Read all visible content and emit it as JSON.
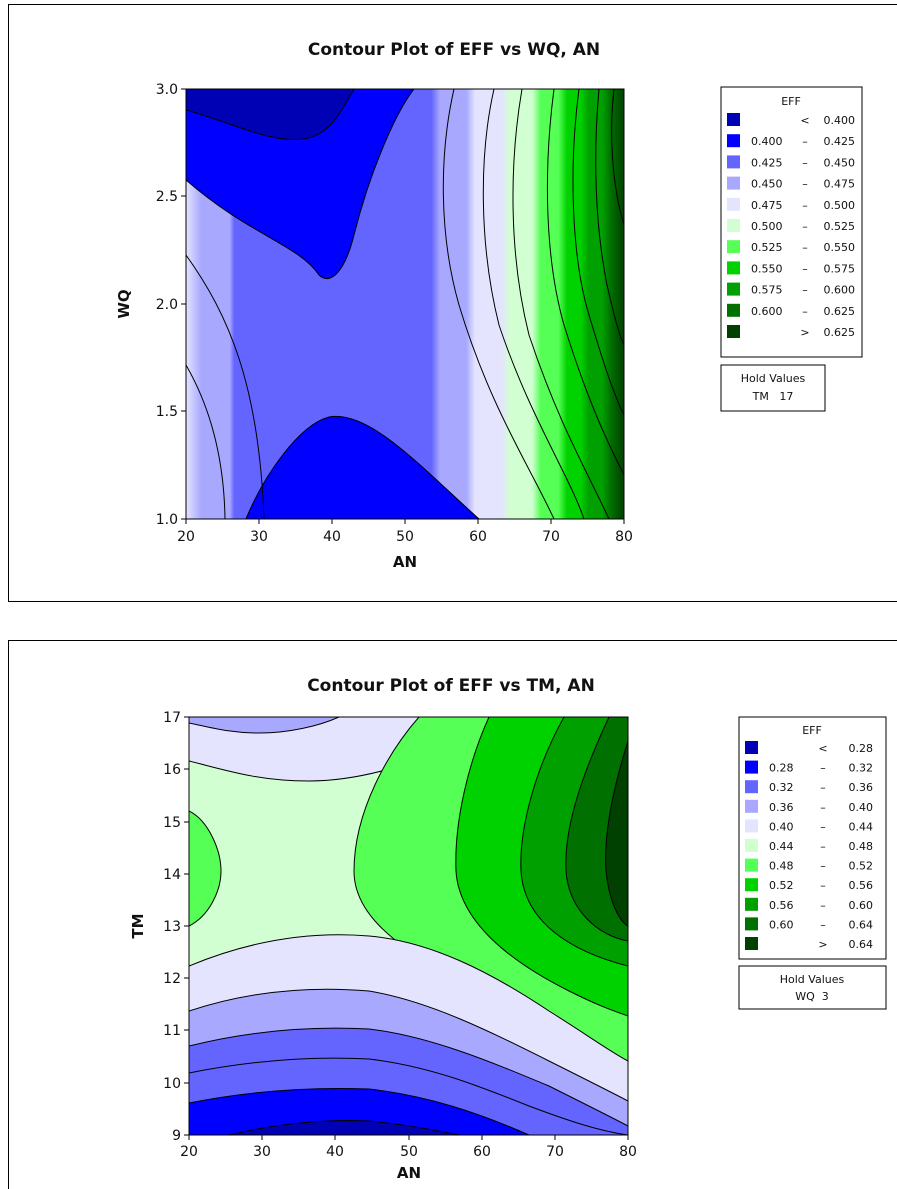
{
  "chart_data": [
    {
      "type": "contour",
      "title": "Contour Plot of EFF vs WQ, AN",
      "xlabel": "AN",
      "ylabel": "WQ",
      "xlim": [
        20,
        80
      ],
      "ylim": [
        1.0,
        3.0
      ],
      "xticks": [
        "20",
        "30",
        "40",
        "50",
        "60",
        "70",
        "80"
      ],
      "yticks": [
        "1.0",
        "1.5",
        "2.0",
        "2.5",
        "3.0"
      ],
      "legend": {
        "title": "EFF",
        "placement": "right",
        "bins": [
          {
            "lo": "",
            "op": "<",
            "hi": "0.400",
            "color": "#0000b4"
          },
          {
            "lo": "0.400",
            "op": "–",
            "hi": "0.425",
            "color": "#0000ff"
          },
          {
            "lo": "0.425",
            "op": "–",
            "hi": "0.450",
            "color": "#6464ff"
          },
          {
            "lo": "0.450",
            "op": "–",
            "hi": "0.475",
            "color": "#a8a8ff"
          },
          {
            "lo": "0.475",
            "op": "–",
            "hi": "0.500",
            "color": "#e4e4ff"
          },
          {
            "lo": "0.500",
            "op": "–",
            "hi": "0.525",
            "color": "#d2ffd2"
          },
          {
            "lo": "0.525",
            "op": "–",
            "hi": "0.550",
            "color": "#55ff55"
          },
          {
            "lo": "0.550",
            "op": "–",
            "hi": "0.575",
            "color": "#00d200"
          },
          {
            "lo": "0.575",
            "op": "–",
            "hi": "0.600",
            "color": "#00a000"
          },
          {
            "lo": "0.600",
            "op": "–",
            "hi": "0.625",
            "color": "#007000"
          },
          {
            "lo": "",
            "op": ">",
            "hi": "0.625",
            "color": "#004000"
          }
        ]
      },
      "hold": {
        "title": "Hold Values",
        "value": "TM   17"
      }
    },
    {
      "type": "contour",
      "title": "Contour Plot of EFF vs TM, AN",
      "xlabel": "AN",
      "ylabel": "TM",
      "xlim": [
        20,
        80
      ],
      "ylim": [
        9,
        17
      ],
      "xticks": [
        "20",
        "30",
        "40",
        "50",
        "60",
        "70",
        "80"
      ],
      "yticks": [
        "9",
        "10",
        "11",
        "12",
        "13",
        "14",
        "15",
        "16",
        "17"
      ],
      "legend": {
        "title": "EFF",
        "placement": "right",
        "bins": [
          {
            "lo": "",
            "op": "<",
            "hi": "0.28",
            "color": "#0000b4"
          },
          {
            "lo": "0.28",
            "op": "–",
            "hi": "0.32",
            "color": "#0000ff"
          },
          {
            "lo": "0.32",
            "op": "–",
            "hi": "0.36",
            "color": "#6464ff"
          },
          {
            "lo": "0.36",
            "op": "–",
            "hi": "0.40",
            "color": "#a8a8ff"
          },
          {
            "lo": "0.40",
            "op": "–",
            "hi": "0.44",
            "color": "#e4e4ff"
          },
          {
            "lo": "0.44",
            "op": "–",
            "hi": "0.48",
            "color": "#d2ffd2"
          },
          {
            "lo": "0.48",
            "op": "–",
            "hi": "0.52",
            "color": "#55ff55"
          },
          {
            "lo": "0.52",
            "op": "–",
            "hi": "0.56",
            "color": "#00d200"
          },
          {
            "lo": "0.56",
            "op": "–",
            "hi": "0.60",
            "color": "#00a000"
          },
          {
            "lo": "0.60",
            "op": "–",
            "hi": "0.64",
            "color": "#007000"
          },
          {
            "lo": "",
            "op": ">",
            "hi": "0.64",
            "color": "#004000"
          }
        ]
      },
      "hold": {
        "title": "Hold Values",
        "value": "WQ  3"
      }
    }
  ]
}
